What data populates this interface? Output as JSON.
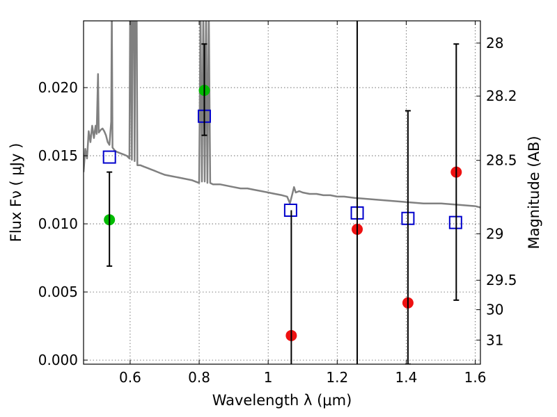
{
  "chart_data": {
    "type": "scatter",
    "xlabel": "Wavelength  λ (μm)",
    "ylabel": "Flux  Fν  ( μJy )",
    "ylabel_right": "Magnitude (AB)",
    "xlim": [
      0.465,
      1.615
    ],
    "ylim": [
      -0.0003,
      0.0249
    ],
    "grid": true,
    "x_ticks": [
      {
        "value": 0.6,
        "label": "0.6"
      },
      {
        "value": 0.8,
        "label": "0.8"
      },
      {
        "value": 1.0,
        "label": "1"
      },
      {
        "value": 1.2,
        "label": "1.2"
      },
      {
        "value": 1.4,
        "label": "1.4"
      },
      {
        "value": 1.6,
        "label": "1.6"
      }
    ],
    "y_ticks": [
      {
        "value": 0.0,
        "label": "0.000"
      },
      {
        "value": 0.005,
        "label": "0.005"
      },
      {
        "value": 0.01,
        "label": "0.010"
      },
      {
        "value": 0.015,
        "label": "0.015"
      },
      {
        "value": 0.02,
        "label": "0.020"
      }
    ],
    "right_ticks": [
      {
        "flux": 0.02327,
        "label": "28"
      },
      {
        "flux": 0.01938,
        "label": "28.2"
      },
      {
        "flux": 0.01466,
        "label": "28.5"
      },
      {
        "flux": 0.00927,
        "label": "29"
      },
      {
        "flux": 0.00586,
        "label": "29.5"
      },
      {
        "flux": 0.0037,
        "label": "30"
      },
      {
        "flux": 0.00147,
        "label": "31"
      }
    ],
    "series": [
      {
        "style": "line",
        "color": "#808080",
        "points": [
          [
            0.465,
            0.0138
          ],
          [
            0.47,
            0.0155
          ],
          [
            0.475,
            0.0148
          ],
          [
            0.48,
            0.0168
          ],
          [
            0.485,
            0.016
          ],
          [
            0.49,
            0.0172
          ],
          [
            0.495,
            0.0163
          ],
          [
            0.5,
            0.0172
          ],
          [
            0.503,
            0.0166
          ],
          [
            0.507,
            0.021
          ],
          [
            0.509,
            0.0167
          ],
          [
            0.515,
            0.0169
          ],
          [
            0.52,
            0.017
          ],
          [
            0.525,
            0.0168
          ],
          [
            0.53,
            0.0165
          ],
          [
            0.535,
            0.016
          ],
          [
            0.54,
            0.0158
          ],
          [
            0.545,
            0.0175
          ],
          [
            0.547,
            0.0255
          ],
          [
            0.549,
            0.0156
          ],
          [
            0.555,
            0.0154
          ],
          [
            0.56,
            0.0153
          ],
          [
            0.57,
            0.0152
          ],
          [
            0.58,
            0.0151
          ],
          [
            0.59,
            0.015
          ],
          [
            0.598,
            0.0148
          ],
          [
            0.6,
            0.0255
          ],
          [
            0.602,
            0.0255
          ],
          [
            0.605,
            0.0147
          ],
          [
            0.607,
            0.0255
          ],
          [
            0.611,
            0.0255
          ],
          [
            0.613,
            0.0146
          ],
          [
            0.615,
            0.0255
          ],
          [
            0.619,
            0.0255
          ],
          [
            0.621,
            0.0143
          ],
          [
            0.63,
            0.0143
          ],
          [
            0.64,
            0.0142
          ],
          [
            0.65,
            0.0141
          ],
          [
            0.66,
            0.014
          ],
          [
            0.67,
            0.0139
          ],
          [
            0.68,
            0.0138
          ],
          [
            0.69,
            0.0137
          ],
          [
            0.7,
            0.0136
          ],
          [
            0.72,
            0.0135
          ],
          [
            0.74,
            0.0134
          ],
          [
            0.76,
            0.0133
          ],
          [
            0.78,
            0.0132
          ],
          [
            0.8,
            0.013
          ],
          [
            0.804,
            0.0255
          ],
          [
            0.808,
            0.0131
          ],
          [
            0.812,
            0.0255
          ],
          [
            0.816,
            0.0131
          ],
          [
            0.82,
            0.0255
          ],
          [
            0.824,
            0.013
          ],
          [
            0.828,
            0.0255
          ],
          [
            0.832,
            0.013
          ],
          [
            0.84,
            0.0129
          ],
          [
            0.86,
            0.0129
          ],
          [
            0.88,
            0.0128
          ],
          [
            0.9,
            0.0127
          ],
          [
            0.92,
            0.0126
          ],
          [
            0.94,
            0.0126
          ],
          [
            0.96,
            0.0125
          ],
          [
            0.98,
            0.0124
          ],
          [
            1.0,
            0.0123
          ],
          [
            1.02,
            0.0122
          ],
          [
            1.04,
            0.0121
          ],
          [
            1.055,
            0.012
          ],
          [
            1.063,
            0.0115
          ],
          [
            1.07,
            0.0122
          ],
          [
            1.075,
            0.0127
          ],
          [
            1.08,
            0.0123
          ],
          [
            1.09,
            0.0124
          ],
          [
            1.1,
            0.0123
          ],
          [
            1.12,
            0.0122
          ],
          [
            1.14,
            0.0122
          ],
          [
            1.16,
            0.0121
          ],
          [
            1.18,
            0.0121
          ],
          [
            1.2,
            0.012
          ],
          [
            1.22,
            0.012
          ],
          [
            1.25,
            0.0119
          ],
          [
            1.3,
            0.0118
          ],
          [
            1.35,
            0.0117
          ],
          [
            1.4,
            0.0116
          ],
          [
            1.45,
            0.0115
          ],
          [
            1.5,
            0.0115
          ],
          [
            1.55,
            0.0114
          ],
          [
            1.6,
            0.0113
          ],
          [
            1.615,
            0.0112
          ]
        ]
      },
      {
        "style": "open-square",
        "color": "#0000cc",
        "points": [
          [
            0.54,
            0.0149
          ],
          [
            0.815,
            0.0179
          ],
          [
            1.065,
            0.011
          ],
          [
            1.258,
            0.0108
          ],
          [
            1.405,
            0.0104
          ],
          [
            1.543,
            0.0101
          ]
        ]
      },
      {
        "style": "filled-circle",
        "color": "#00bb00",
        "points": [
          [
            0.54,
            0.0103
          ],
          [
            0.815,
            0.0198
          ]
        ]
      },
      {
        "style": "filled-circle",
        "color": "#ee1111",
        "points": [
          [
            1.067,
            0.0018
          ],
          [
            1.258,
            0.0096
          ],
          [
            1.405,
            0.0042
          ],
          [
            1.545,
            0.0138
          ]
        ]
      },
      {
        "style": "errorbar",
        "color": "#000000",
        "bars": [
          {
            "x": 0.54,
            "low": 0.0069,
            "high": 0.0138,
            "caps": true
          },
          {
            "x": 0.815,
            "low": 0.0165,
            "high": 0.0232,
            "caps": true
          },
          {
            "x": 1.067,
            "low": -0.0003,
            "high": 0.011,
            "caps": false
          },
          {
            "x": 1.258,
            "low": -0.0003,
            "high": 0.0249,
            "caps": false
          },
          {
            "x": 1.405,
            "low": -0.0003,
            "high": 0.0183,
            "caps": true
          },
          {
            "x": 1.545,
            "low": 0.0044,
            "high": 0.0232,
            "caps": true
          }
        ]
      }
    ]
  }
}
